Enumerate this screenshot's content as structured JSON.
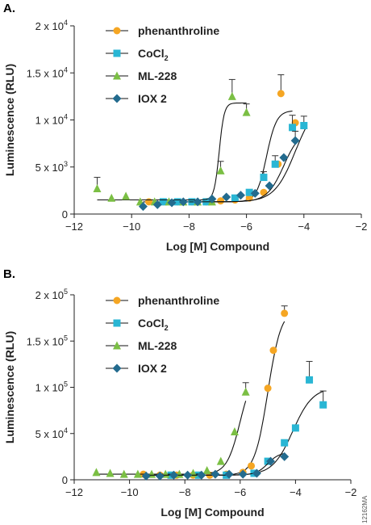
{
  "figure_code": "12162MA",
  "colors": {
    "phenanthroline": "#f5a623",
    "CoCl2": "#29b6d4",
    "ML-228": "#7bbf44",
    "IOX 2": "#236b8e",
    "curve": "#111111",
    "error": "#333333"
  },
  "legend_labels": {
    "phenanthroline": "phenanthroline",
    "CoCl2_base": "CoCl",
    "CoCl2_sub": "2",
    "ML-228": "ML-228",
    "IOX 2": "IOX 2"
  },
  "chart_data": [
    {
      "panel_label": "A.",
      "type": "scatter",
      "xlabel": "Log [M] Compound",
      "ylabel": "Luminescence (RLU)",
      "xlim": [
        -12,
        -2
      ],
      "ylim": [
        0,
        20000
      ],
      "x_ticks": [
        -12,
        -10,
        -8,
        -6,
        -4,
        -2
      ],
      "x_tick_labels": [
        "−12",
        "−10",
        "−8",
        "−6",
        "−4",
        "−2"
      ],
      "y_ticks": [
        0,
        5000,
        10000,
        15000,
        20000
      ],
      "y_tick_labels": [
        {
          "base": "0",
          "exp": ""
        },
        {
          "base": "5 x 10",
          "exp": "3"
        },
        {
          "base": "1 x 10",
          "exp": "4"
        },
        {
          "base": "1.5 x 10",
          "exp": "4"
        },
        {
          "base": "2 x 10",
          "exp": "4"
        }
      ],
      "legend_position": "top-left",
      "series": [
        {
          "name": "phenanthroline",
          "marker": "circle",
          "points": [
            [
              -9.4,
              1300,
              0
            ],
            [
              -8.9,
              1300,
              0
            ],
            [
              -8.4,
              1300,
              0
            ],
            [
              -7.9,
              1300,
              0
            ],
            [
              -7.4,
              1300,
              0
            ],
            [
              -6.9,
              1400,
              0
            ],
            [
              -6.4,
              1500,
              0
            ],
            [
              -5.9,
              1700,
              0
            ],
            [
              -5.4,
              2300,
              0
            ],
            [
              -4.9,
              5300,
              0
            ],
            [
              -4.8,
              12800,
              2000
            ],
            [
              -4.3,
              9700,
              0
            ]
          ],
          "curve": {
            "bottom": 1300,
            "top": 11000,
            "ec50": -5.3,
            "hill": 2.5,
            "x0": -9.6,
            "x1": -4.4
          }
        },
        {
          "name": "CoCl2",
          "marker": "square",
          "points": [
            [
              -8.9,
              1300,
              0
            ],
            [
              -8.4,
              1300,
              0
            ],
            [
              -7.9,
              1300,
              0
            ],
            [
              -7.4,
              1300,
              0
            ],
            [
              -6.4,
              1700,
              0
            ],
            [
              -5.9,
              2300,
              0
            ],
            [
              -5.4,
              3900,
              600
            ],
            [
              -5.0,
              5300,
              900
            ],
            [
              -4.4,
              9200,
              1300
            ],
            [
              -4.0,
              9400,
              1000
            ]
          ],
          "curve": {
            "bottom": 1300,
            "top": 12000,
            "ec50": -4.3,
            "hill": 1.2,
            "x0": -9.0,
            "x1": -3.9
          }
        },
        {
          "name": "ML-228",
          "marker": "triangle",
          "points": [
            [
              -11.2,
              2700,
              1200
            ],
            [
              -10.7,
              1700,
              0
            ],
            [
              -10.2,
              1900,
              0
            ],
            [
              -9.7,
              1300,
              0
            ],
            [
              -9.2,
              1300,
              0
            ],
            [
              -8.7,
              1300,
              0
            ],
            [
              -8.2,
              1300,
              0
            ],
            [
              -7.7,
              1300,
              0
            ],
            [
              -7.2,
              1300,
              0
            ],
            [
              -6.9,
              4600,
              1000
            ],
            [
              -6.5,
              12500,
              1800
            ],
            [
              -6.0,
              10800,
              900
            ]
          ],
          "curve": {
            "bottom": 1500,
            "top": 11800,
            "ec50": -6.95,
            "hill": 5,
            "x0": -11.2,
            "x1": -6.0
          }
        },
        {
          "name": "IOX 2",
          "marker": "diamond",
          "points": [
            [
              -9.6,
              800,
              0
            ],
            [
              -9.1,
              1000,
              0
            ],
            [
              -8.6,
              1200,
              0
            ],
            [
              -8.2,
              1300,
              0
            ],
            [
              -7.7,
              1300,
              0
            ],
            [
              -7.2,
              1600,
              0
            ],
            [
              -6.7,
              1800,
              0
            ],
            [
              -6.2,
              2000,
              0
            ],
            [
              -5.7,
              2200,
              0
            ],
            [
              -5.2,
              3000,
              0
            ],
            [
              -4.7,
              6000,
              0
            ],
            [
              -4.3,
              7800,
              1000
            ]
          ],
          "curve": {
            "bottom": 1300,
            "top": 9000,
            "ec50": -4.7,
            "hill": 1.5,
            "x0": -8.0,
            "x1": -4.3
          }
        }
      ]
    },
    {
      "panel_label": "B.",
      "type": "scatter",
      "xlabel": "Log [M] Compound",
      "ylabel": "Luminescence (RLU)",
      "xlim": [
        -12,
        -2
      ],
      "ylim": [
        0,
        200000
      ],
      "x_ticks": [
        -12,
        -10,
        -8,
        -6,
        -4,
        -2
      ],
      "x_tick_labels": [
        "−12",
        "−10",
        "−8",
        "−6",
        "−4",
        "−2"
      ],
      "y_ticks": [
        0,
        50000,
        100000,
        150000,
        200000
      ],
      "y_tick_labels": [
        {
          "base": "0",
          "exp": ""
        },
        {
          "base": "5 x 10",
          "exp": "4"
        },
        {
          "base": "1 x 10",
          "exp": "5"
        },
        {
          "base": "1.5 x 10",
          "exp": "5"
        },
        {
          "base": "2 x 10",
          "exp": "5"
        }
      ],
      "legend_position": "top-left",
      "series": [
        {
          "name": "phenanthroline",
          "marker": "circle",
          "points": [
            [
              -9.5,
              6000,
              0
            ],
            [
              -8.9,
              5000,
              0
            ],
            [
              -8.3,
              5000,
              0
            ],
            [
              -7.7,
              5000,
              0
            ],
            [
              -7.1,
              5000,
              0
            ],
            [
              -6.5,
              6000,
              0
            ],
            [
              -5.9,
              8000,
              0
            ],
            [
              -5.6,
              15000,
              0
            ],
            [
              -5.0,
              99000,
              0
            ],
            [
              -4.8,
              140000,
              0
            ],
            [
              -4.4,
              180000,
              8000
            ]
          ],
          "curve": {
            "bottom": 5000,
            "top": 185000,
            "ec50": -5.0,
            "hill": 1.8,
            "x0": -9.6,
            "x1": -4.4
          }
        },
        {
          "name": "CoCl2",
          "marker": "square",
          "points": [
            [
              -8.5,
              5000,
              0
            ],
            [
              -7.5,
              5000,
              0
            ],
            [
              -6.5,
              5000,
              0
            ],
            [
              -5.5,
              7000,
              0
            ],
            [
              -5.0,
              20000,
              0
            ],
            [
              -4.4,
              40000,
              0
            ],
            [
              -4.0,
              56000,
              0
            ],
            [
              -3.5,
              108000,
              20000
            ],
            [
              -3.0,
              81000,
              15000
            ]
          ],
          "curve": {
            "bottom": 5000,
            "top": 100000,
            "ec50": -4.1,
            "hill": 1.2,
            "x0": -8.5,
            "x1": -3.0
          }
        },
        {
          "name": "ML-228",
          "marker": "triangle",
          "points": [
            [
              -11.2,
              8000,
              0
            ],
            [
              -10.7,
              7000,
              0
            ],
            [
              -10.2,
              6000,
              0
            ],
            [
              -9.7,
              6000,
              0
            ],
            [
              -9.2,
              6000,
              0
            ],
            [
              -8.7,
              6000,
              0
            ],
            [
              -8.2,
              6000,
              0
            ],
            [
              -7.7,
              7000,
              0
            ],
            [
              -7.2,
              10000,
              0
            ],
            [
              -6.7,
              20000,
              0
            ],
            [
              -6.2,
              52000,
              0
            ],
            [
              -5.8,
              95000,
              10000
            ]
          ],
          "curve": {
            "bottom": 6000,
            "top": 120000,
            "ec50": -6.0,
            "hill": 1.8,
            "x0": -11.2,
            "x1": -5.8
          }
        },
        {
          "name": "IOX 2",
          "marker": "diamond",
          "points": [
            [
              -9.4,
              4000,
              0
            ],
            [
              -8.9,
              4000,
              0
            ],
            [
              -8.4,
              5000,
              0
            ],
            [
              -7.9,
              5000,
              0
            ],
            [
              -7.4,
              5000,
              0
            ],
            [
              -6.9,
              6000,
              0
            ],
            [
              -6.4,
              6000,
              0
            ],
            [
              -5.9,
              6000,
              0
            ],
            [
              -5.4,
              7000,
              0
            ],
            [
              -4.9,
              20000,
              0
            ],
            [
              -4.4,
              25000,
              0
            ]
          ],
          "curve": {
            "bottom": 5000,
            "top": 30000,
            "ec50": -5.0,
            "hill": 2,
            "x0": -9.4,
            "x1": -4.4
          }
        }
      ]
    }
  ]
}
